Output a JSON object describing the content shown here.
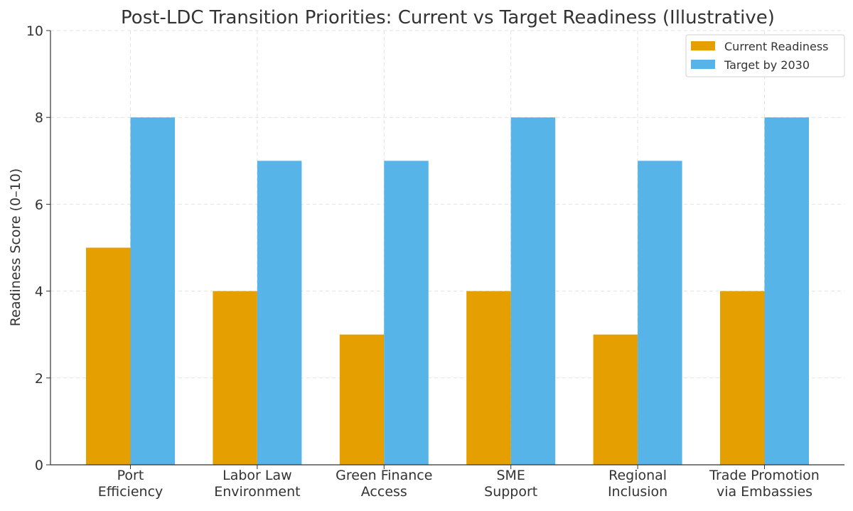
{
  "chart_data": {
    "type": "bar",
    "title": "Post-LDC Transition Priorities: Current vs Target Readiness (Illustrative)",
    "xlabel": "",
    "ylabel": "Readiness Score (0–10)",
    "ylim": [
      0,
      10
    ],
    "yticks": [
      0,
      2,
      4,
      6,
      8,
      10
    ],
    "grid": true,
    "legend_position": "top-right",
    "categories": [
      [
        "Port",
        "Efficiency"
      ],
      [
        "Labor Law",
        "Environment"
      ],
      [
        "Green Finance",
        "Access"
      ],
      [
        "SME",
        "Support"
      ],
      [
        "Regional",
        "Inclusion"
      ],
      [
        "Trade Promotion",
        "via Embassies"
      ]
    ],
    "series": [
      {
        "name": "Current Readiness",
        "color": "#E69F00",
        "values": [
          5,
          4,
          3,
          4,
          3,
          4
        ]
      },
      {
        "name": "Target by 2030",
        "color": "#56B4E9",
        "values": [
          8,
          7,
          7,
          8,
          7,
          8
        ]
      }
    ]
  }
}
